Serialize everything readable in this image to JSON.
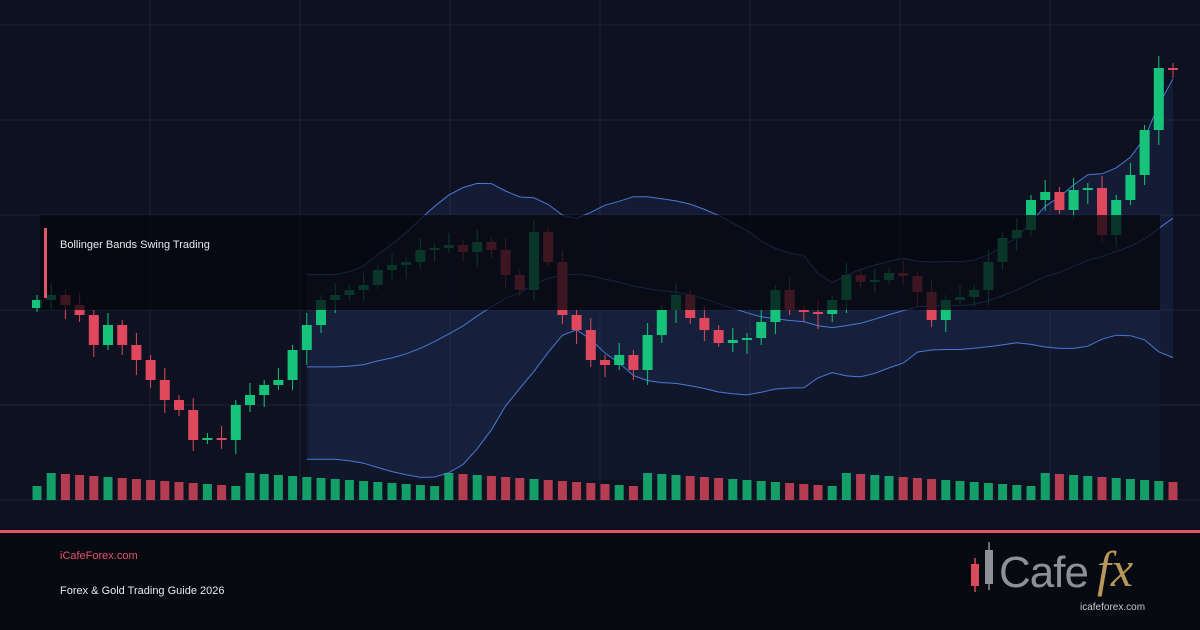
{
  "title": "Bollinger Bands Swing Trading",
  "footer": {
    "site": "iCafeForex.com",
    "guide": "Forex & Gold Trading Guide 2026"
  },
  "logo": {
    "brand_left": "Cafe",
    "brand_right": "fx",
    "url": "icafeforex.com"
  }
}
